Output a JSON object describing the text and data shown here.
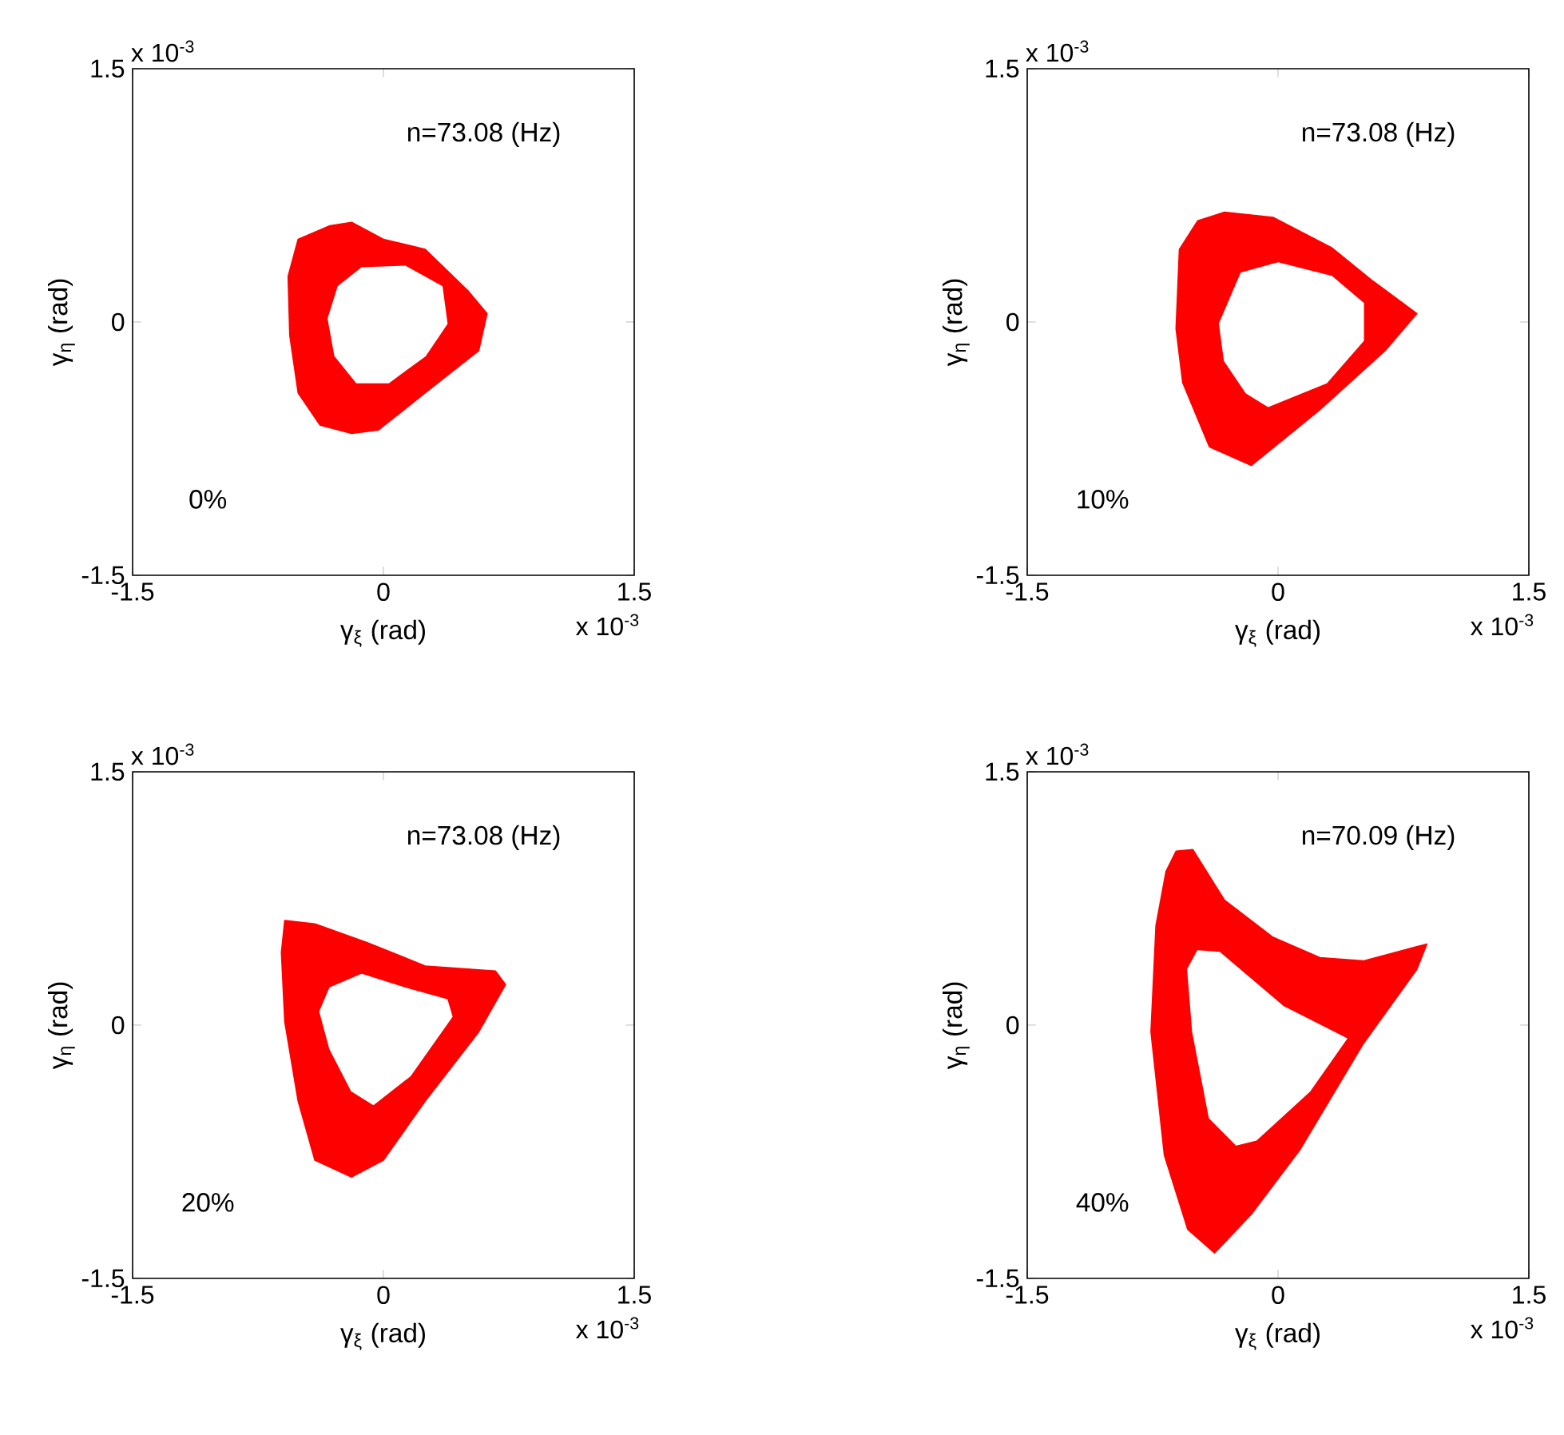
{
  "chart_data": [
    {
      "type": "area",
      "xlabel": "γ$_{ξ}$ (rad)",
      "ylabel": "γ$_{η}$ (rad)",
      "annotations": [
        "n=73.08 (Hz)",
        "0%",
        "x 10$^{-3}$",
        "x 10$^{-3}$"
      ],
      "xlim": [
        -1.5,
        1.5
      ],
      "ylim": [
        -1.5,
        1.5
      ],
      "xticks": [
        -1.5,
        0,
        1.5
      ],
      "yticks": [
        -1.5,
        0,
        1.5
      ],
      "series": [
        {
          "color": "#ff0000",
          "x": [
            -0.19,
            0,
            0.25,
            0.51,
            0.62,
            0.57,
            0.25,
            -0.03,
            -0.19,
            -0.38,
            -0.51,
            -0.56,
            -0.57,
            -0.51,
            -0.32
          ],
          "values": [
            0.59,
            0.49,
            0.43,
            0.18,
            0.05,
            -0.17,
            -0.42,
            -0.64,
            -0.66,
            -0.61,
            -0.42,
            -0.08,
            0.27,
            0.49,
            0.57
          ]
        },
        {
          "color": "#ffffff",
          "x": [
            -0.13,
            0.13,
            0.35,
            0.38,
            0.25,
            0.03,
            -0.16,
            -0.29,
            -0.33,
            -0.27
          ],
          "values": [
            0.32,
            0.33,
            0.21,
            -0.01,
            -0.2,
            -0.36,
            -0.36,
            -0.2,
            0.02,
            0.21
          ]
        }
      ]
    },
    {
      "type": "area",
      "xlabel": "γ$_{ξ}$ (rad)",
      "ylabel": "γ$_{η}$ (rad)",
      "annotations": [
        "n=73.08 (Hz)",
        "10%",
        "x 10$^{-3}$",
        "x 10$^{-3}$"
      ],
      "xlim": [
        -1.5,
        1.5
      ],
      "ylim": [
        -1.5,
        1.5
      ],
      "xticks": [
        -1.5,
        0,
        1.5
      ],
      "yticks": [
        -1.5,
        0,
        1.5
      ],
      "series": [
        {
          "color": "#ff0000",
          "x": [
            -0.32,
            -0.03,
            0.32,
            0.57,
            0.83,
            0.64,
            0.25,
            -0.16,
            -0.41,
            -0.57,
            -0.61,
            -0.59,
            -0.48
          ],
          "values": [
            0.65,
            0.62,
            0.44,
            0.24,
            0.05,
            -0.17,
            -0.52,
            -0.85,
            -0.74,
            -0.36,
            -0.04,
            0.43,
            0.6
          ]
        },
        {
          "color": "#ffffff",
          "x": [
            -0.22,
            0,
            0.32,
            0.51,
            0.51,
            0.29,
            -0.06,
            -0.19,
            -0.32,
            -0.35
          ],
          "values": [
            0.29,
            0.35,
            0.27,
            0.11,
            -0.11,
            -0.36,
            -0.5,
            -0.42,
            -0.23,
            -0.01
          ]
        }
      ]
    },
    {
      "type": "area",
      "xlabel": "γ$_{ξ}$ (rad)",
      "ylabel": "γ$_{η}$ (rad)",
      "annotations": [
        "n=73.08 (Hz)",
        "20%",
        "x 10$^{-3}$",
        "x 10$^{-3}$"
      ],
      "xlim": [
        -1.5,
        1.5
      ],
      "ylim": [
        -1.5,
        1.5
      ],
      "xticks": [
        -1.5,
        0,
        1.5
      ],
      "yticks": [
        -1.5,
        0,
        1.5
      ],
      "series": [
        {
          "color": "#ff0000",
          "x": [
            -0.59,
            -0.41,
            -0.1,
            0.25,
            0.67,
            0.73,
            0.57,
            0.25,
            0,
            -0.19,
            -0.41,
            -0.51,
            -0.59,
            -0.61
          ],
          "values": [
            0.62,
            0.6,
            0.49,
            0.35,
            0.32,
            0.24,
            -0.04,
            -0.45,
            -0.8,
            -0.9,
            -0.8,
            -0.45,
            0.02,
            0.43
          ]
        },
        {
          "color": "#ffffff",
          "x": [
            -0.32,
            -0.13,
            0.16,
            0.38,
            0.41,
            0.16,
            -0.06,
            -0.19,
            -0.32,
            -0.38
          ],
          "values": [
            0.22,
            0.3,
            0.21,
            0.15,
            0.05,
            -0.3,
            -0.47,
            -0.39,
            -0.14,
            0.08
          ]
        }
      ]
    },
    {
      "type": "area",
      "xlabel": "γ$_{ξ}$ (rad)",
      "ylabel": "γ$_{η}$ (rad)",
      "annotations": [
        "n=70.09 (Hz)",
        "40%",
        "x 10$^{-3}$",
        "x 10$^{-3}$"
      ],
      "xlim": [
        -1.5,
        1.5
      ],
      "ylim": [
        -1.5,
        1.5
      ],
      "xticks": [
        -1.5,
        0,
        1.5
      ],
      "yticks": [
        -1.5,
        0,
        1.5
      ],
      "series": [
        {
          "color": "#ff0000",
          "x": [
            -0.61,
            -0.51,
            -0.32,
            -0.03,
            0.25,
            0.51,
            0.89,
            0.83,
            0.51,
            0.13,
            -0.16,
            -0.38,
            -0.54,
            -0.68,
            -0.76,
            -0.73,
            -0.67
          ],
          "values": [
            1.03,
            1.04,
            0.74,
            0.52,
            0.4,
            0.38,
            0.48,
            0.33,
            -0.11,
            -0.74,
            -1.12,
            -1.35,
            -1.21,
            -0.77,
            -0.04,
            0.59,
            0.91
          ]
        },
        {
          "color": "#ffffff",
          "x": [
            -0.48,
            -0.35,
            -0.16,
            0.03,
            0.41,
            0.19,
            -0.13,
            -0.25,
            -0.41,
            -0.51,
            -0.54
          ],
          "values": [
            0.44,
            0.43,
            0.27,
            0.11,
            -0.08,
            -0.39,
            -0.68,
            -0.71,
            -0.55,
            -0.04,
            0.33
          ]
        }
      ]
    }
  ]
}
